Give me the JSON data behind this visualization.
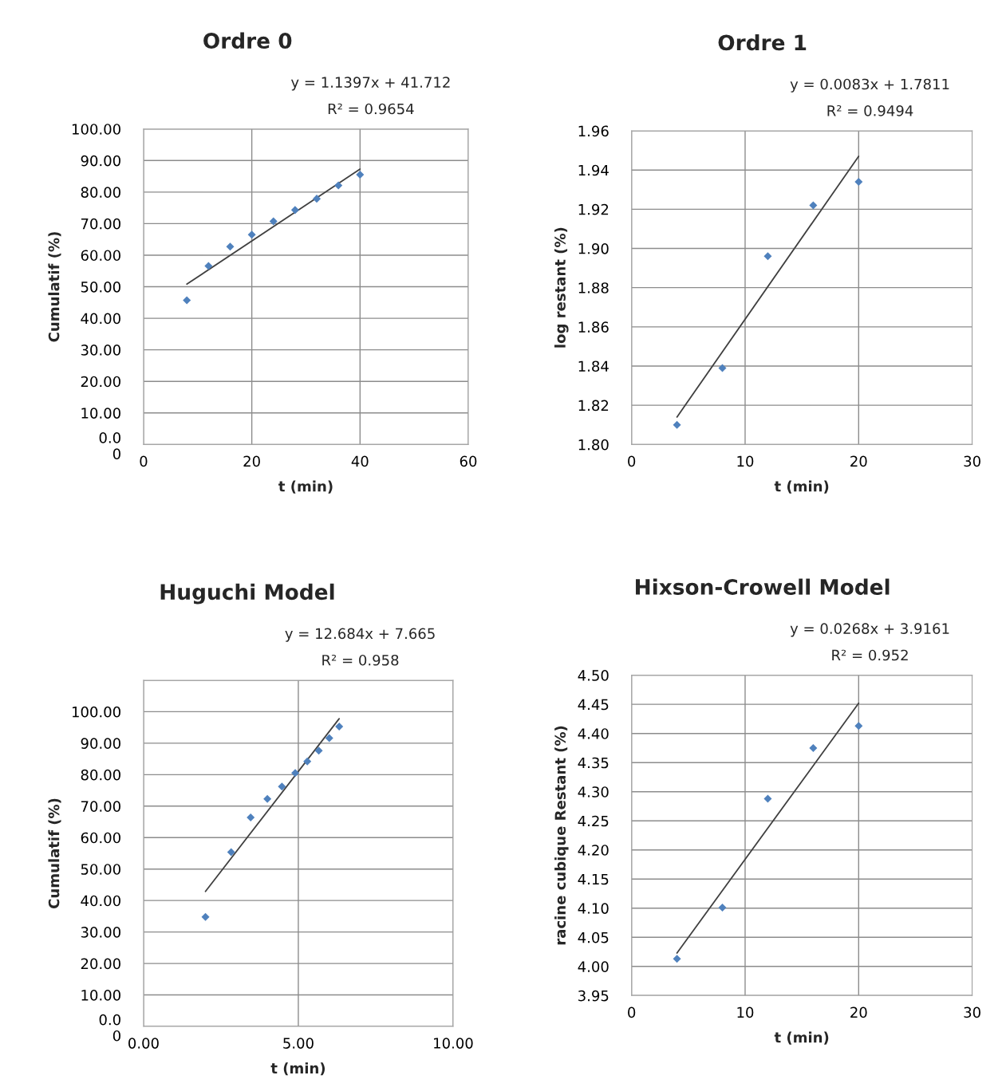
{
  "chart_data": [
    {
      "type": "scatter",
      "title": "Ordre 0",
      "xlabel": "t (min)",
      "ylabel": "Cumulatif (%)",
      "annotations": [
        "y = 1.1397x + 41.712",
        "R² = 0.9654"
      ],
      "grid": true,
      "xlim": [
        0,
        60
      ],
      "xticks": [
        0,
        20,
        40,
        60
      ],
      "ylim": [
        0,
        100
      ],
      "yticks": [
        {
          "value": 0,
          "label": "0.0\n0"
        },
        {
          "value": 10,
          "label": "10.00"
        },
        {
          "value": 20,
          "label": "20.00"
        },
        {
          "value": 30,
          "label": "30.00"
        },
        {
          "value": 40,
          "label": "40.00"
        },
        {
          "value": 50,
          "label": "50.00"
        },
        {
          "value": 60,
          "label": "60.00"
        },
        {
          "value": 70,
          "label": "70.00"
        },
        {
          "value": 80,
          "label": "80.00"
        },
        {
          "value": 90,
          "label": "90.00"
        },
        {
          "value": 100,
          "label": "100.00"
        }
      ],
      "series": [
        {
          "type": "scatter",
          "color": "#4f81bd",
          "marker": "diamond",
          "x": [
            8,
            12,
            16,
            20,
            24,
            28,
            32,
            36,
            40
          ],
          "values": [
            45.7,
            56.6,
            62.7,
            66.5,
            70.7,
            74.3,
            77.9,
            82.1,
            85.5
          ]
        },
        {
          "type": "line",
          "color": "#404040",
          "x": [
            8,
            40
          ],
          "values": [
            50.8,
            87.3
          ]
        }
      ]
    },
    {
      "type": "scatter",
      "title": "Ordre 1",
      "xlabel": "t (min)",
      "ylabel": "log restant (%)",
      "annotations": [
        "y = 0.0083x + 1.7811",
        "R² = 0.9494"
      ],
      "grid": true,
      "xlim": [
        0,
        30
      ],
      "xticks": [
        0,
        10,
        20,
        30
      ],
      "ylim": [
        1.8,
        1.96
      ],
      "yticks": [
        {
          "value": 1.8,
          "label": "1.80"
        },
        {
          "value": 1.82,
          "label": "1.82"
        },
        {
          "value": 1.84,
          "label": "1.84"
        },
        {
          "value": 1.86,
          "label": "1.86"
        },
        {
          "value": 1.88,
          "label": "1.88"
        },
        {
          "value": 1.9,
          "label": "1.90"
        },
        {
          "value": 1.92,
          "label": "1.92"
        },
        {
          "value": 1.94,
          "label": "1.94"
        },
        {
          "value": 1.96,
          "label": "1.96"
        }
      ],
      "series": [
        {
          "type": "scatter",
          "color": "#4f81bd",
          "marker": "diamond",
          "x": [
            4,
            8,
            12,
            16,
            20
          ],
          "values": [
            1.81,
            1.839,
            1.896,
            1.922,
            1.934
          ]
        },
        {
          "type": "line",
          "color": "#404040",
          "x": [
            4,
            20
          ],
          "values": [
            1.814,
            1.947
          ]
        }
      ]
    },
    {
      "type": "scatter",
      "title": "Huguchi Model",
      "xlabel": "t (min)",
      "ylabel": "Cumulatif (%)",
      "annotations": [
        "y = 12.684x + 7.665",
        "R² = 0.958"
      ],
      "grid": true,
      "xlim": [
        0,
        10
      ],
      "xticks": [
        {
          "value": 0,
          "label": "0.00"
        },
        {
          "value": 5,
          "label": "5.00"
        },
        {
          "value": 10,
          "label": "10.00"
        }
      ],
      "ylim": [
        0,
        110
      ],
      "yticks": [
        {
          "value": 0,
          "label": "0.0\n0"
        },
        {
          "value": 10,
          "label": "10.00"
        },
        {
          "value": 20,
          "label": "20.00"
        },
        {
          "value": 30,
          "label": "30.00"
        },
        {
          "value": 40,
          "label": "40.00"
        },
        {
          "value": 50,
          "label": "50.00"
        },
        {
          "value": 60,
          "label": "60.00"
        },
        {
          "value": 70,
          "label": "70.00"
        },
        {
          "value": 80,
          "label": "80.00"
        },
        {
          "value": 90,
          "label": "90.00"
        },
        {
          "value": 100,
          "label": "100.00"
        },
        {
          "value": 110,
          "label": null
        }
      ],
      "series": [
        {
          "type": "scatter",
          "color": "#4f81bd",
          "marker": "diamond",
          "x": [
            2.0,
            2.83,
            3.46,
            4.0,
            4.47,
            4.9,
            5.29,
            5.66,
            6.0,
            6.32
          ],
          "values": [
            34.8,
            55.4,
            66.4,
            72.3,
            76.2,
            80.5,
            84.2,
            87.6,
            91.6,
            95.3
          ]
        },
        {
          "type": "line",
          "color": "#404040",
          "x": [
            2.0,
            6.32
          ],
          "values": [
            42.9,
            97.8
          ]
        }
      ]
    },
    {
      "type": "scatter",
      "title": "Hixson-Crowell Model",
      "xlabel": "t (min)",
      "ylabel": "racine cubique Restant (%)",
      "annotations": [
        "y = 0.0268x + 3.9161",
        "R² = 0.952"
      ],
      "grid": true,
      "xlim": [
        0,
        30
      ],
      "xticks": [
        0,
        10,
        20,
        30
      ],
      "ylim": [
        3.95,
        4.5
      ],
      "yticks": [
        {
          "value": 3.95,
          "label": "3.95"
        },
        {
          "value": 4.0,
          "label": "4.00"
        },
        {
          "value": 4.05,
          "label": "4.05"
        },
        {
          "value": 4.1,
          "label": "4.10"
        },
        {
          "value": 4.15,
          "label": "4.15"
        },
        {
          "value": 4.2,
          "label": "4.20"
        },
        {
          "value": 4.25,
          "label": "4.25"
        },
        {
          "value": 4.3,
          "label": "4.30"
        },
        {
          "value": 4.35,
          "label": "4.35"
        },
        {
          "value": 4.4,
          "label": "4.40"
        },
        {
          "value": 4.45,
          "label": "4.45"
        },
        {
          "value": 4.5,
          "label": "4.50"
        }
      ],
      "series": [
        {
          "type": "scatter",
          "color": "#4f81bd",
          "marker": "diamond",
          "x": [
            4,
            8,
            12,
            16,
            20
          ],
          "values": [
            4.013,
            4.101,
            4.288,
            4.375,
            4.413
          ]
        },
        {
          "type": "line",
          "color": "#404040",
          "x": [
            4,
            20
          ],
          "values": [
            4.023,
            4.452
          ]
        }
      ]
    }
  ]
}
